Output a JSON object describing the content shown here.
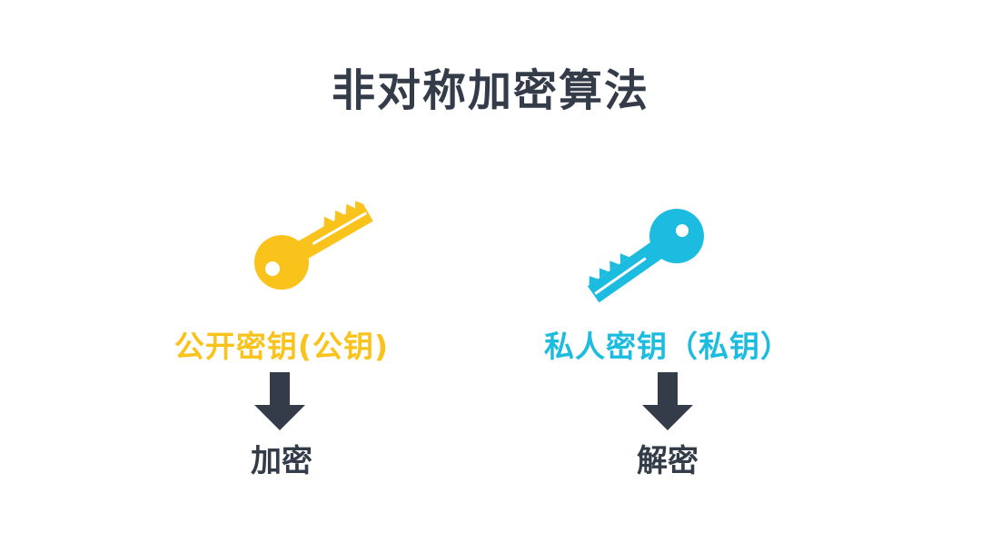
{
  "title": "非对称加密算法",
  "colors": {
    "public_key": "#f9c31b",
    "private_key": "#1cbce0",
    "text_dark": "#343c4a"
  },
  "public": {
    "icon": "key-icon",
    "label": "公开密钥(公钥)",
    "result": "加密"
  },
  "private": {
    "icon": "key-icon",
    "label": "私人密钥（私钥）",
    "result": "解密"
  }
}
